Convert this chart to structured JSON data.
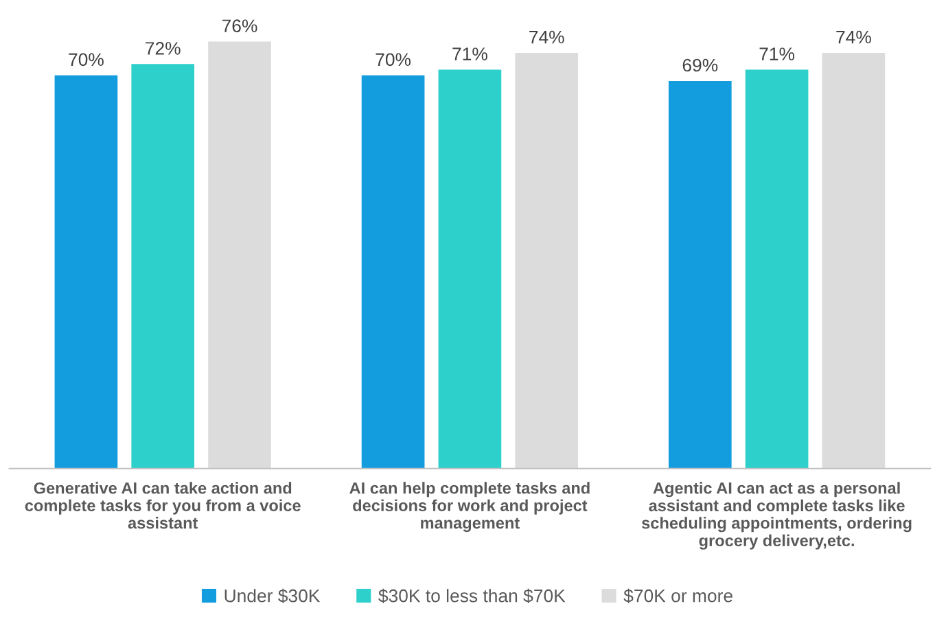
{
  "chart_data": {
    "type": "bar",
    "categories": [
      "Generative AI can take action and\ncomplete tasks for you from a voice\nassistant",
      "AI can help complete tasks and\ndecisions for work and project\nmanagement",
      "Agentic AI can act as a personal\nassistant and complete tasks like\nscheduling appointments, ordering\ngrocery delivery,etc."
    ],
    "series": [
      {
        "name": "Under $30K",
        "color": "#139ddf",
        "values": [
          70,
          70,
          69
        ],
        "value_labels": [
          "70%",
          "70%",
          "69%"
        ]
      },
      {
        "name": "$30K to less than $70K",
        "color": "#2ed0cc",
        "values": [
          72,
          71,
          71
        ],
        "value_labels": [
          "72%",
          "71%",
          "71%"
        ]
      },
      {
        "name": "$70K or more",
        "color": "#dcdcdc",
        "values": [
          76,
          74,
          74
        ],
        "value_labels": [
          "76%",
          "74%",
          "74%"
        ]
      }
    ],
    "tick_labels": "x",
    "grid": false,
    "legend": "bottom"
  }
}
